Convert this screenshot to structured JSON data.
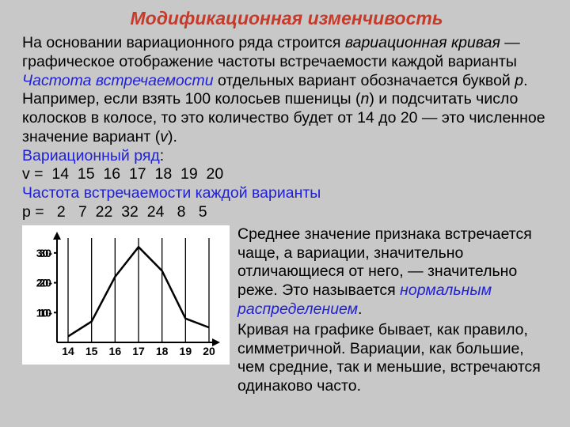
{
  "title": "Модификационная изменчивость",
  "title_color": "#c63a2a",
  "p1_a": "На основании вариационного ряда строится ",
  "p1_b": "вариационная кривая",
  "p1_c": " — графическое отображение частоты встречаемости каждой варианты",
  "p2_a": "Частота встречаемости",
  "p2_b": " отдельных вариант обозначается буквой ",
  "p2_c": "p",
  "p2_d": ".",
  "p3_a": "Например, если взять 100 колосьев пшеницы (",
  "p3_b": "n",
  "p3_c": ") и подсчитать число колосков в колосе, то это количество будет от 14 до 20 — это численное значение вариант (",
  "p3_d": "v",
  "p3_e": ").",
  "p4": "Вариационный ряд",
  "p4_colon": ":",
  "v_row": "v =  14  15  16  17  18  19  20",
  "p5": "Частота встречаемости каждой варианты",
  "p_row": "p =   2   7  22  32  24   8   5",
  "rp1_a": "Среднее значение признака встречается чаще, а вариации, значительно отличающиеся от него, — значительно реже. Это называется ",
  "rp1_b": "нормальным распределением",
  "rp1_c": ".",
  "rp2": "Кривая на графике бывает, как правило, симметричной. Вариации, как большие, чем средние, так и меньшие, встречаются одинаково часто.",
  "chart": {
    "x_labels": [
      "14",
      "15",
      "16",
      "17",
      "18",
      "19",
      "20"
    ],
    "y_labels": [
      "10",
      "20",
      "30"
    ],
    "x_values": [
      14,
      15,
      16,
      17,
      18,
      19,
      20
    ],
    "y_values": [
      2,
      7,
      22,
      32,
      24,
      8,
      5
    ],
    "ylim": [
      0,
      35
    ],
    "stroke": "#000000",
    "line_width": 2.5,
    "font_size": 14,
    "font_weight": "bold",
    "bg": "#ffffff"
  }
}
